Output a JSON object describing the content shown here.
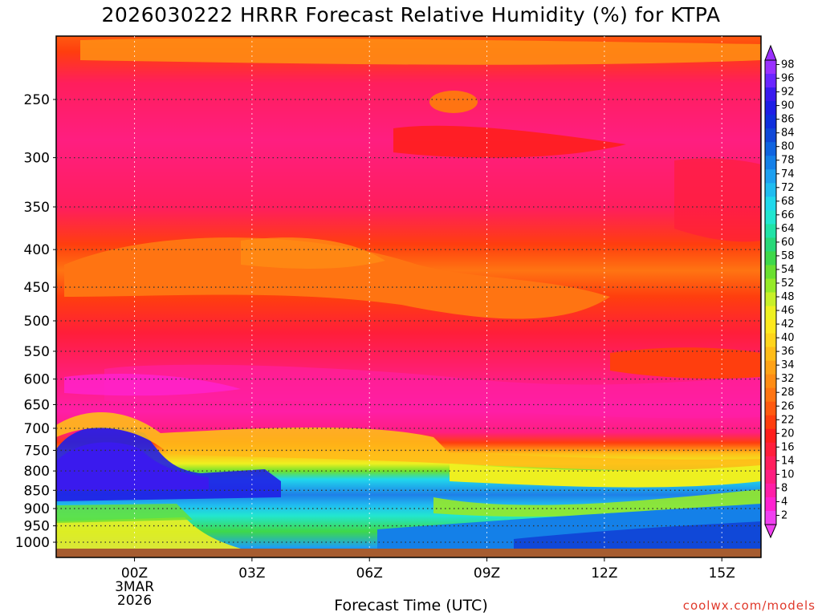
{
  "chart_data": {
    "type": "heatmap",
    "title": "2026030222 HRRR Forecast Relative Humidity (%) for KTPA",
    "xlabel": "Forecast Time (UTC)",
    "ylabel": "",
    "x_ticks": [
      "00Z",
      "03Z",
      "06Z",
      "09Z",
      "12Z",
      "15Z"
    ],
    "x_date_lines": [
      "3MAR",
      "2026"
    ],
    "x_range_hours": [
      -2,
      16
    ],
    "y_ticks": [
      250,
      300,
      350,
      400,
      450,
      500,
      550,
      600,
      650,
      700,
      750,
      800,
      850,
      900,
      950,
      1000
    ],
    "y_range_hpa": [
      200,
      1020
    ],
    "grid": true,
    "colorbar_labels": [
      98,
      96,
      92,
      90,
      86,
      84,
      80,
      78,
      74,
      72,
      68,
      66,
      64,
      60,
      58,
      54,
      52,
      48,
      46,
      42,
      40,
      36,
      34,
      32,
      28,
      26,
      22,
      20,
      16,
      14,
      10,
      8,
      4,
      2
    ],
    "colorbar_colors": [
      "#9a30ff",
      "#6a25ff",
      "#3a1aee",
      "#1f1fe6",
      "#1030dd",
      "#1048d8",
      "#1064e0",
      "#1480e8",
      "#1ea0f0",
      "#20bcf0",
      "#20d8ec",
      "#22e6d0",
      "#20e2a6",
      "#28d878",
      "#3ed84a",
      "#6ae030",
      "#96ea28",
      "#c8f028",
      "#eef020",
      "#ffe81e",
      "#ffd41c",
      "#ffbc18",
      "#ffa216",
      "#ff8c14",
      "#ff7412",
      "#ff5a10",
      "#ff3e0e",
      "#ff1e1c",
      "#ff1e3a",
      "#ff1e5c",
      "#ff1e80",
      "#ff1ea6",
      "#ff22d0",
      "#f040f0"
    ],
    "rh_profile": [
      {
        "p": 200,
        "rh": 28
      },
      {
        "p": 220,
        "rh": 22
      },
      {
        "p": 250,
        "rh": 10
      },
      {
        "p": 300,
        "rh": 10
      },
      {
        "p": 350,
        "rh": 12
      },
      {
        "p": 400,
        "rh": 24
      },
      {
        "p": 450,
        "rh": 28
      },
      {
        "p": 500,
        "rh": 20
      },
      {
        "p": 550,
        "rh": 12
      },
      {
        "p": 600,
        "rh": 10
      },
      {
        "p": 650,
        "rh": 6
      },
      {
        "p": 700,
        "rh": 14
      },
      {
        "p": 750,
        "rh": 36
      },
      {
        "p": 800,
        "rh": 82
      },
      {
        "p": 850,
        "rh": 80
      },
      {
        "p": 900,
        "rh": 66
      },
      {
        "p": 950,
        "rh": 60
      },
      {
        "p": 1000,
        "rh": 76
      }
    ]
  },
  "credit": "coolwx.com/models"
}
